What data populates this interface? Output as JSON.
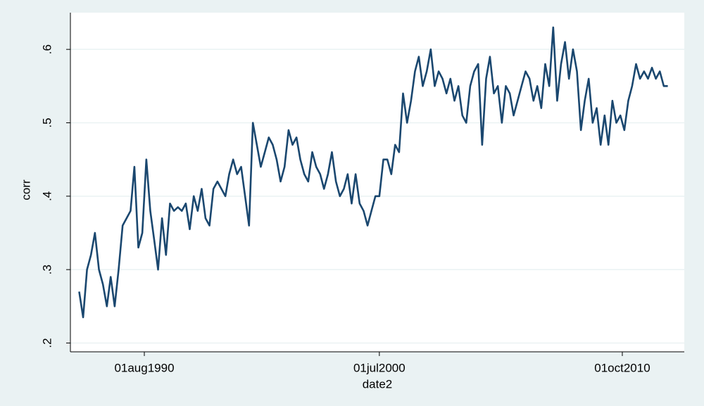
{
  "chart_data": {
    "type": "line",
    "x_label": "date2",
    "y_label": "corr",
    "xlim": [
      "1987-06-19",
      "2013-05-13"
    ],
    "ylim": [
      0.188,
      0.65
    ],
    "xticks": [
      {
        "value": "1990-08-01",
        "label": "01aug1990"
      },
      {
        "value": "2000-07-01",
        "label": "01jul2000"
      },
      {
        "value": "2010-10-01",
        "label": "01oct2010"
      }
    ],
    "yticks": [
      {
        "value": 0.2,
        "label": ".2"
      },
      {
        "value": 0.3,
        "label": ".3"
      },
      {
        "value": 0.4,
        "label": ".4"
      },
      {
        "value": 0.5,
        "label": ".5"
      },
      {
        "value": 0.6,
        "label": ".6"
      }
    ],
    "grid": true,
    "series": [
      {
        "color": "#1a476f",
        "x": [
          "1987-11-01",
          "1988-01-01",
          "1988-03-01",
          "1988-05-01",
          "1988-07-01",
          "1988-09-01",
          "1988-11-01",
          "1989-01-01",
          "1989-03-01",
          "1989-05-01",
          "1989-07-01",
          "1989-09-01",
          "1989-11-01",
          "1990-01-01",
          "1990-03-01",
          "1990-05-01",
          "1990-07-01",
          "1990-09-01",
          "1990-11-01",
          "1991-01-01",
          "1991-03-01",
          "1991-05-01",
          "1991-07-01",
          "1991-09-01",
          "1991-11-01",
          "1992-01-01",
          "1992-03-01",
          "1992-05-01",
          "1992-07-01",
          "1992-09-01",
          "1992-11-01",
          "1993-01-01",
          "1993-03-01",
          "1993-05-01",
          "1993-07-01",
          "1993-09-01",
          "1993-11-01",
          "1994-01-01",
          "1994-03-01",
          "1994-05-01",
          "1994-07-01",
          "1994-09-01",
          "1994-11-01",
          "1995-01-01",
          "1995-03-01",
          "1995-05-01",
          "1995-07-01",
          "1995-09-01",
          "1995-11-01",
          "1996-01-01",
          "1996-03-01",
          "1996-05-01",
          "1996-07-01",
          "1996-09-01",
          "1996-11-01",
          "1997-01-01",
          "1997-03-01",
          "1997-05-01",
          "1997-07-01",
          "1997-09-01",
          "1997-11-01",
          "1998-01-01",
          "1998-03-01",
          "1998-05-01",
          "1998-07-01",
          "1998-09-01",
          "1998-11-01",
          "1999-01-01",
          "1999-03-01",
          "1999-05-01",
          "1999-07-01",
          "1999-09-01",
          "1999-11-01",
          "2000-01-01",
          "2000-03-01",
          "2000-05-01",
          "2000-07-01",
          "2000-09-01",
          "2000-11-01",
          "2001-01-01",
          "2001-03-01",
          "2001-05-01",
          "2001-07-01",
          "2001-09-01",
          "2001-11-01",
          "2002-01-01",
          "2002-03-01",
          "2002-05-01",
          "2002-07-01",
          "2002-09-01",
          "2002-11-01",
          "2003-01-01",
          "2003-03-01",
          "2003-05-01",
          "2003-07-01",
          "2003-09-01",
          "2003-11-01",
          "2004-01-01",
          "2004-03-01",
          "2004-05-01",
          "2004-07-01",
          "2004-09-01",
          "2004-11-01",
          "2005-01-01",
          "2005-03-01",
          "2005-05-01",
          "2005-07-01",
          "2005-09-01",
          "2005-11-01",
          "2006-01-01",
          "2006-03-01",
          "2006-05-01",
          "2006-07-01",
          "2006-09-01",
          "2006-11-01",
          "2007-01-01",
          "2007-03-01",
          "2007-05-01",
          "2007-07-01",
          "2007-09-01",
          "2007-11-01",
          "2008-01-01",
          "2008-03-01",
          "2008-05-01",
          "2008-07-01",
          "2008-09-01",
          "2008-11-01",
          "2009-01-01",
          "2009-03-01",
          "2009-05-01",
          "2009-07-01",
          "2009-09-01",
          "2009-11-01",
          "2010-01-01",
          "2010-03-01",
          "2010-05-01",
          "2010-07-01",
          "2010-09-01",
          "2010-11-01",
          "2011-01-01",
          "2011-03-01",
          "2011-05-01",
          "2011-07-01",
          "2011-09-01",
          "2011-11-01",
          "2012-01-01",
          "2012-03-01",
          "2012-05-01",
          "2012-07-01",
          "2012-09-01"
        ],
        "values": [
          0.27,
          0.235,
          0.3,
          0.32,
          0.35,
          0.3,
          0.28,
          0.25,
          0.29,
          0.25,
          0.3,
          0.36,
          0.37,
          0.38,
          0.44,
          0.33,
          0.35,
          0.45,
          0.38,
          0.34,
          0.3,
          0.37,
          0.32,
          0.39,
          0.38,
          0.385,
          0.38,
          0.39,
          0.355,
          0.4,
          0.38,
          0.41,
          0.37,
          0.36,
          0.41,
          0.42,
          0.41,
          0.4,
          0.43,
          0.45,
          0.43,
          0.44,
          0.4,
          0.36,
          0.5,
          0.47,
          0.44,
          0.46,
          0.48,
          0.47,
          0.45,
          0.42,
          0.44,
          0.49,
          0.47,
          0.48,
          0.45,
          0.43,
          0.42,
          0.46,
          0.44,
          0.43,
          0.41,
          0.43,
          0.46,
          0.42,
          0.4,
          0.41,
          0.43,
          0.39,
          0.43,
          0.39,
          0.38,
          0.36,
          0.38,
          0.4,
          0.4,
          0.45,
          0.45,
          0.43,
          0.47,
          0.46,
          0.54,
          0.5,
          0.53,
          0.57,
          0.59,
          0.55,
          0.57,
          0.6,
          0.55,
          0.57,
          0.56,
          0.54,
          0.56,
          0.53,
          0.55,
          0.51,
          0.5,
          0.55,
          0.57,
          0.58,
          0.47,
          0.56,
          0.59,
          0.54,
          0.55,
          0.5,
          0.55,
          0.54,
          0.51,
          0.53,
          0.55,
          0.57,
          0.56,
          0.53,
          0.55,
          0.52,
          0.58,
          0.55,
          0.63,
          0.53,
          0.58,
          0.61,
          0.56,
          0.6,
          0.57,
          0.49,
          0.53,
          0.56,
          0.5,
          0.52,
          0.47,
          0.51,
          0.47,
          0.53,
          0.5,
          0.51,
          0.49,
          0.53,
          0.55,
          0.58,
          0.56,
          0.57,
          0.56,
          0.575,
          0.56,
          0.57,
          0.55,
          0.55
        ]
      }
    ]
  }
}
